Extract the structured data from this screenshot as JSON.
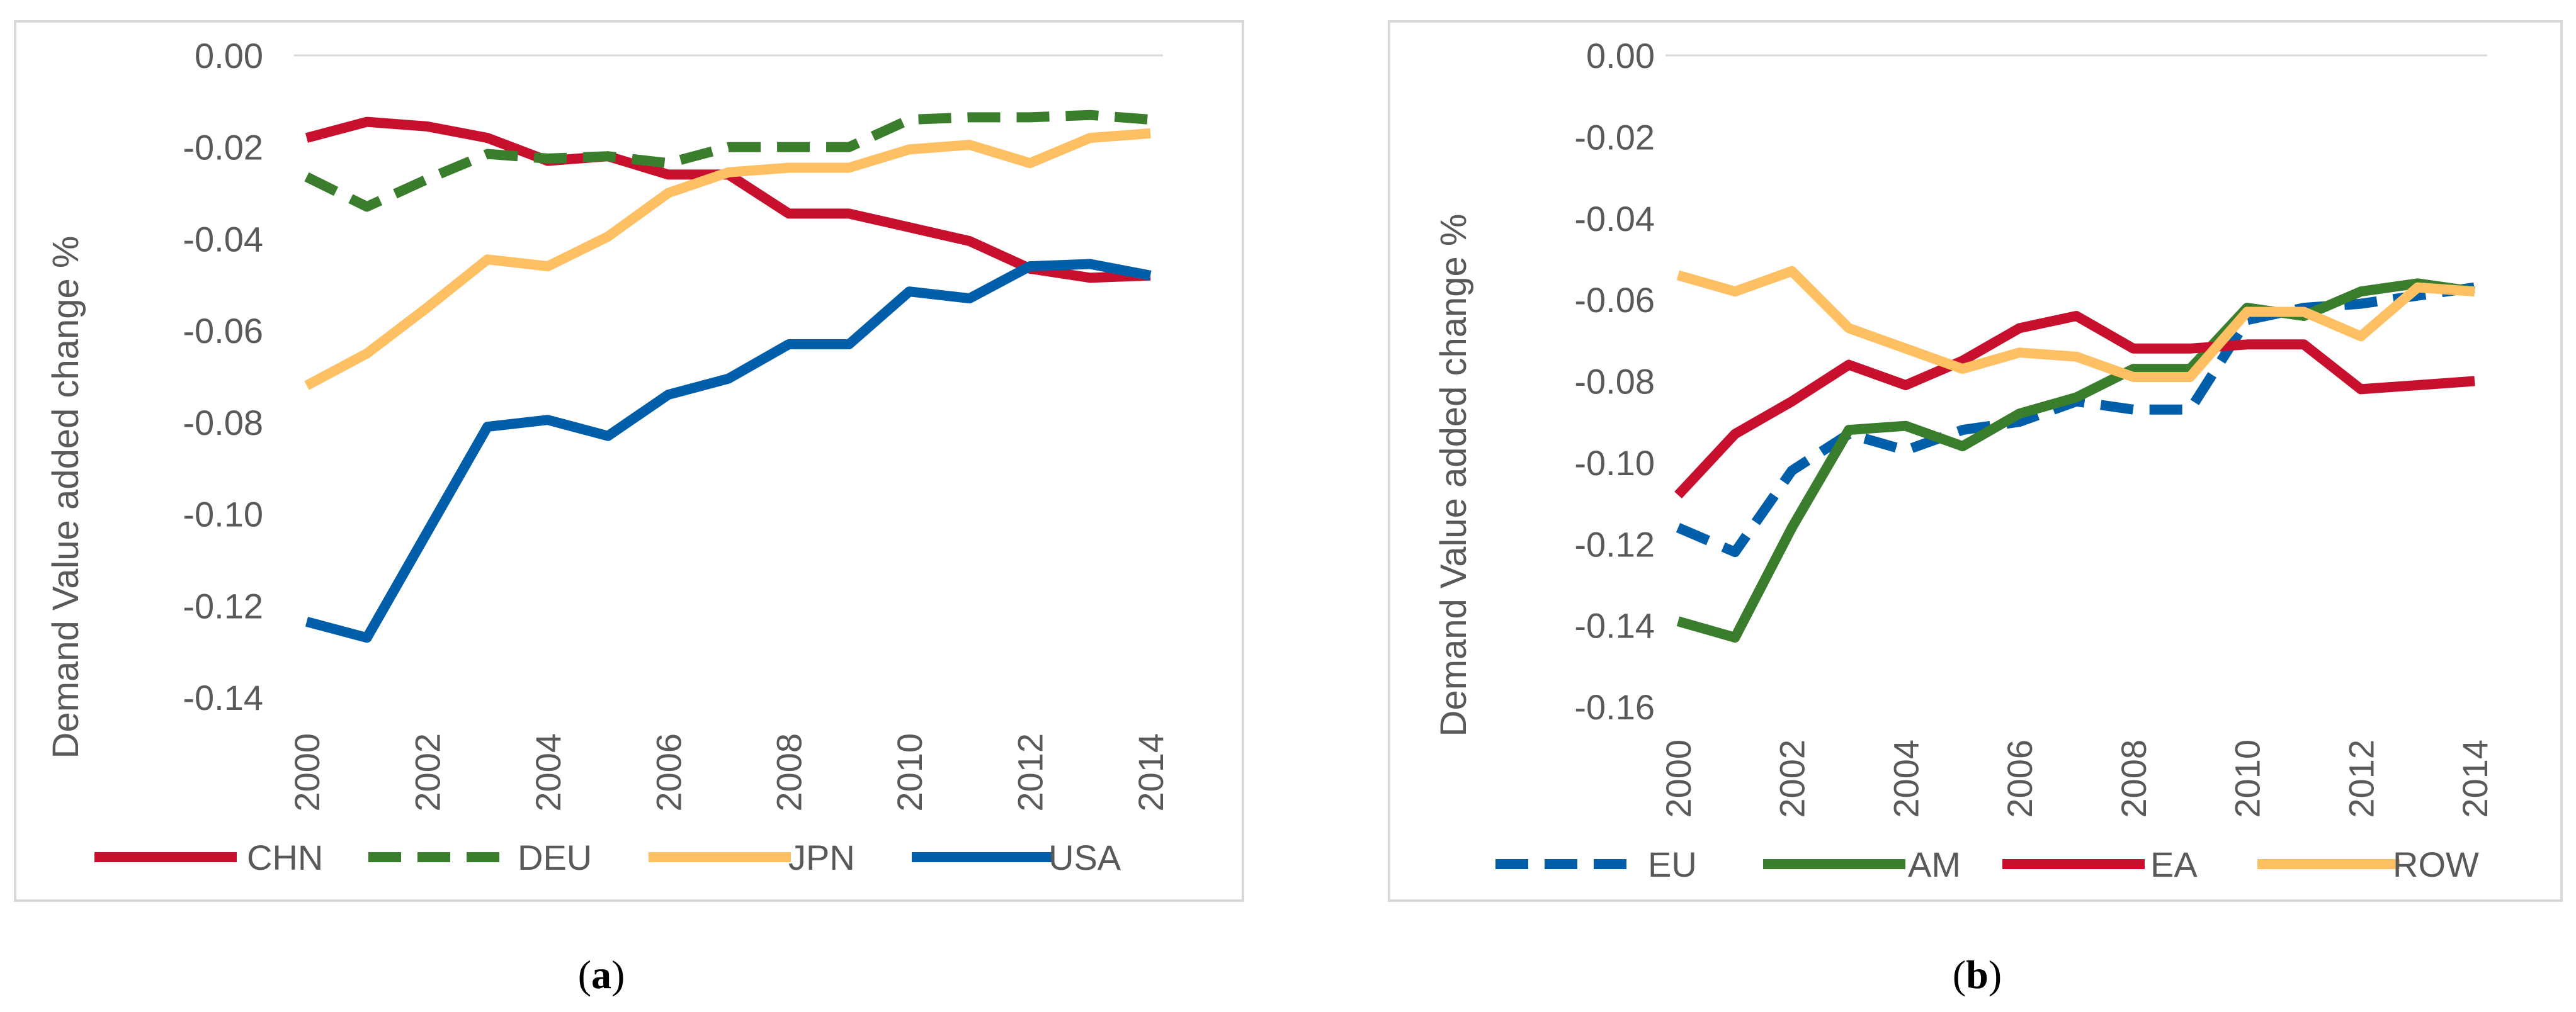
{
  "chart_data": [
    {
      "type": "line",
      "panel_label": "a",
      "title": "",
      "xlabel": "",
      "ylabel": "Demand Value added change %",
      "x": [
        2000,
        2001,
        2002,
        2003,
        2004,
        2005,
        2006,
        2007,
        2008,
        2009,
        2010,
        2011,
        2012,
        2013,
        2014
      ],
      "x_tick_labels": [
        "2000",
        "2002",
        "2004",
        "2006",
        "2008",
        "2010",
        "2012",
        "2014"
      ],
      "ylim": [
        -0.14,
        0.0
      ],
      "y_tick_labels": [
        "0.00",
        "-0.02",
        "-0.04",
        "-0.06",
        "-0.08",
        "-0.10",
        "-0.12",
        "-0.14"
      ],
      "grid": "horizontal",
      "legend_position": "bottom",
      "series": [
        {
          "name": "CHN",
          "color": "#c8102e",
          "style": "solid",
          "values": [
            -0.018,
            -0.0145,
            -0.0155,
            -0.018,
            -0.023,
            -0.022,
            -0.026,
            -0.026,
            -0.0345,
            -0.0345,
            -0.0375,
            -0.0405,
            -0.0465,
            -0.0485,
            -0.048
          ]
        },
        {
          "name": "DEU",
          "color": "#3a7d2c",
          "style": "dashed",
          "values": [
            -0.0265,
            -0.033,
            -0.027,
            -0.0215,
            -0.0225,
            -0.022,
            -0.0235,
            -0.02,
            -0.02,
            -0.02,
            -0.014,
            -0.0135,
            -0.0135,
            -0.013,
            -0.014
          ]
        },
        {
          "name": "JPN",
          "color": "#ffc064",
          "style": "solid",
          "values": [
            -0.072,
            -0.065,
            -0.055,
            -0.0445,
            -0.046,
            -0.0395,
            -0.03,
            -0.0255,
            -0.0245,
            -0.0245,
            -0.0205,
            -0.0195,
            -0.0235,
            -0.018,
            -0.017
          ]
        },
        {
          "name": "USA",
          "color": "#005eaa",
          "style": "solid",
          "values": [
            -0.1235,
            -0.127,
            -0.104,
            -0.081,
            -0.0795,
            -0.083,
            -0.074,
            -0.0705,
            -0.063,
            -0.063,
            -0.0515,
            -0.053,
            -0.046,
            -0.0455,
            -0.048
          ]
        }
      ]
    },
    {
      "type": "line",
      "panel_label": "b",
      "title": "",
      "xlabel": "",
      "ylabel": "Demand Value added change %",
      "x": [
        2000,
        2001,
        2002,
        2003,
        2004,
        2005,
        2006,
        2007,
        2008,
        2009,
        2010,
        2011,
        2012,
        2013,
        2014
      ],
      "x_tick_labels": [
        "2000",
        "2002",
        "2004",
        "2006",
        "2008",
        "2010",
        "2012",
        "2014"
      ],
      "ylim": [
        -0.16,
        0.0
      ],
      "y_tick_labels": [
        "0.00",
        "-0.02",
        "-0.04",
        "-0.06",
        "-0.08",
        "-0.10",
        "-0.12",
        "-0.14",
        "-0.16"
      ],
      "grid": "horizontal",
      "legend_position": "bottom",
      "series": [
        {
          "name": "EU",
          "color": "#005eaa",
          "style": "dashed",
          "values": [
            -0.116,
            -0.122,
            -0.102,
            -0.093,
            -0.097,
            -0.092,
            -0.09,
            -0.085,
            -0.087,
            -0.087,
            -0.065,
            -0.062,
            -0.061,
            -0.059,
            -0.057
          ]
        },
        {
          "name": "AM",
          "color": "#3a7d2c",
          "style": "solid",
          "values": [
            -0.139,
            -0.143,
            -0.116,
            -0.092,
            -0.091,
            -0.096,
            -0.088,
            -0.084,
            -0.077,
            -0.077,
            -0.062,
            -0.064,
            -0.058,
            -0.056,
            -0.058
          ]
        },
        {
          "name": "EA",
          "color": "#c8102e",
          "style": "solid",
          "values": [
            -0.108,
            -0.093,
            -0.085,
            -0.076,
            -0.081,
            -0.075,
            -0.067,
            -0.064,
            -0.072,
            -0.072,
            -0.071,
            -0.071,
            -0.082,
            -0.081,
            -0.08
          ]
        },
        {
          "name": "ROW",
          "color": "#ffc064",
          "style": "solid",
          "values": [
            -0.054,
            -0.058,
            -0.053,
            -0.067,
            -0.072,
            -0.077,
            -0.073,
            -0.074,
            -0.079,
            -0.079,
            -0.063,
            -0.063,
            -0.069,
            -0.057,
            -0.058
          ]
        }
      ]
    }
  ]
}
